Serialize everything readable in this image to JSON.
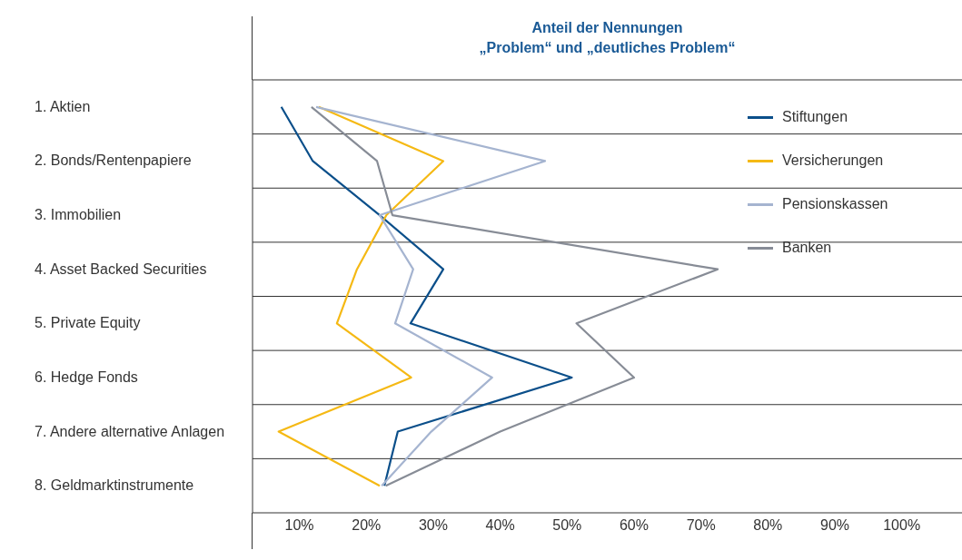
{
  "chart_data": {
    "type": "line",
    "orientation": "horizontal",
    "title": "Anteil der Nennungen\n„Problem“ und „deutliches Problem“",
    "categories": [
      "1. Aktien",
      "2. Bonds/Rentenpapiere",
      "3. Immobilien",
      "4. Asset Backed Securities",
      "5. Private Equity",
      "6. Hedge Fonds",
      "7. Andere alternative Anlagen",
      "8. Geldmarktinstrumente"
    ],
    "series": [
      {
        "name": "Stiftungen",
        "color": "#0b4f8a",
        "values": [
          7.3,
          12,
          22,
          31.5,
          26.6,
          50.7,
          24.7,
          22.7
        ]
      },
      {
        "name": "Versicherungen",
        "color": "#f5b914",
        "values": [
          12.9,
          31.5,
          23,
          18.6,
          15.6,
          26.7,
          6.9,
          22
        ]
      },
      {
        "name": "Pensionskassen",
        "color": "#a5b4d0",
        "values": [
          12.5,
          46.7,
          22,
          27,
          24.3,
          38.8,
          29.7,
          22.3
        ]
      },
      {
        "name": "Banken",
        "color": "#878c96",
        "values": [
          11.8,
          21.6,
          23.9,
          72.5,
          51.4,
          60,
          40,
          22.9
        ]
      }
    ],
    "xlim": [
      3,
      109
    ],
    "xticks": [
      {
        "value": 10,
        "label": "10%"
      },
      {
        "value": 20,
        "label": "20%"
      },
      {
        "value": 30,
        "label": "30%"
      },
      {
        "value": 40,
        "label": "40%"
      },
      {
        "value": 50,
        "label": "50%"
      },
      {
        "value": 60,
        "label": "60%"
      },
      {
        "value": 70,
        "label": "70%"
      },
      {
        "value": 80,
        "label": "80%"
      },
      {
        "value": 90,
        "label": "90%"
      },
      {
        "value": 100,
        "label": "100%"
      }
    ],
    "grid": "y",
    "legend": "top right",
    "marker": "none",
    "line_style": "solid"
  }
}
